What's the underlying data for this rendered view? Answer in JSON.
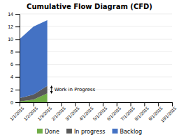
{
  "chart_data": {
    "type": "area",
    "title": "Cumulative Flow Diagram (CFD)",
    "categories": [
      "1/1/2015",
      "1/2/2015",
      "1/3/2015",
      "2/1/2015",
      "3/1/2015",
      "4/1/2015",
      "5/1/2015",
      "6/1/2015",
      "7/1/2015",
      "8/1/2015",
      "9/1/2015",
      "10/1/2015"
    ],
    "series": [
      {
        "name": "Done",
        "color": "#70ad47",
        "values": [
          0.15,
          0.4,
          1.4,
          null,
          null,
          null,
          null,
          null,
          null,
          null,
          null,
          null
        ]
      },
      {
        "name": "In progress",
        "color": "#595959",
        "values": [
          0.5,
          0.8,
          1.2,
          null,
          null,
          null,
          null,
          null,
          null,
          null,
          null,
          null
        ]
      },
      {
        "name": "Backlog",
        "color": "#4472c4",
        "values": [
          9.35,
          10.8,
          10.4,
          null,
          null,
          null,
          null,
          null,
          null,
          null,
          null,
          null
        ]
      }
    ],
    "stacked": true,
    "ylim": [
      0,
      14
    ],
    "yticks": [
      0,
      2,
      4,
      6,
      8,
      10,
      12,
      14
    ],
    "grid": true,
    "legend": "bottom",
    "annotation": "Work in Progress"
  }
}
